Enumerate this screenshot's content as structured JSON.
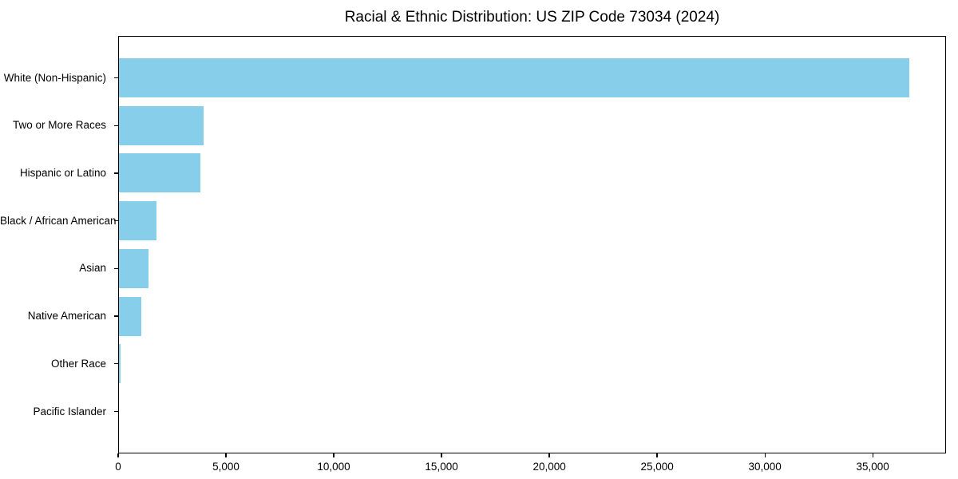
{
  "title": "Racial & Ethnic Distribution: US ZIP Code 73034 (2024)",
  "colors": {
    "bar": "#87CEEB",
    "axis": "#000000",
    "background": "#FFFFFF",
    "text": "#000000"
  },
  "chart_data": {
    "type": "bar",
    "orientation": "horizontal",
    "title": "Racial & Ethnic Distribution: US ZIP Code 73034 (2024)",
    "xlabel": "",
    "ylabel": "",
    "categories": [
      "White (Non-Hispanic)",
      "Two or More Races",
      "Hispanic or Latino",
      "Black / African American",
      "Asian",
      "Native American",
      "Other Race",
      "Pacific Islander"
    ],
    "values": [
      36700,
      3950,
      3800,
      1780,
      1400,
      1075,
      110,
      20
    ],
    "xlim": [
      0,
      38400
    ],
    "xticks": [
      0,
      5000,
      10000,
      15000,
      20000,
      25000,
      30000,
      35000
    ],
    "xtick_labels": [
      "0",
      "5,000",
      "10,000",
      "15,000",
      "20,000",
      "25,000",
      "30,000",
      "35,000"
    ],
    "bar_color": "#87CEEB",
    "grid": false,
    "legend": null
  }
}
